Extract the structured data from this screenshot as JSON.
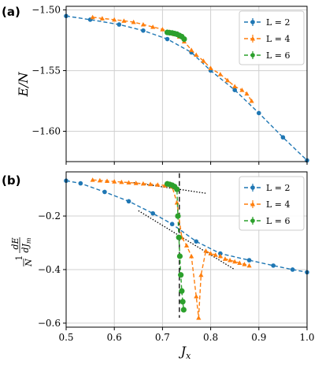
{
  "panels": [
    {
      "label": "(a)",
      "ylabel": "E/N"
    },
    {
      "label": "(b)",
      "ylabel": "(1/N) dE/dJ_m"
    }
  ],
  "colors": {
    "L2": "#1f77b4",
    "L4": "#ff7f0e",
    "L6": "#2ca02c",
    "grid": "#d0d0d0"
  },
  "chart_data": [
    {
      "type": "line",
      "panel": "(a)",
      "ylabel": "E/N",
      "xlim": [
        0.5,
        1.0
      ],
      "ylim": [
        -1.625,
        -1.497
      ],
      "x_ticks": [
        "0.5",
        "0.6",
        "0.7",
        "0.8",
        "0.9",
        "1.0"
      ],
      "y_ticks": [
        {
          "value": -1.5,
          "label": "−1.50"
        },
        {
          "value": -1.55,
          "label": "−1.55"
        },
        {
          "value": -1.6,
          "label": "−1.60"
        }
      ],
      "grid": true,
      "legend_position": "top-right",
      "series": [
        {
          "name": "L = 2",
          "marker": "circle",
          "color": "#1f77b4",
          "x": [
            0.5,
            0.55,
            0.61,
            0.66,
            0.71,
            0.76,
            0.8,
            0.85,
            0.9,
            0.95,
            1.0
          ],
          "y": [
            -1.505,
            -1.508,
            -1.512,
            -1.517,
            -1.524,
            -1.535,
            -1.55,
            -1.566,
            -1.585,
            -1.605,
            -1.624
          ]
        },
        {
          "name": "L = 4",
          "marker": "triangle",
          "color": "#ff7f0e",
          "x": [
            0.555,
            0.575,
            0.6,
            0.62,
            0.64,
            0.66,
            0.68,
            0.7,
            0.715,
            0.725,
            0.735,
            0.745,
            0.76,
            0.77,
            0.785,
            0.8,
            0.82,
            0.835,
            0.85,
            0.865,
            0.875,
            0.885
          ],
          "y": [
            -1.506,
            -1.507,
            -1.508,
            -1.509,
            -1.51,
            -1.512,
            -1.514,
            -1.516,
            -1.518,
            -1.52,
            -1.522,
            -1.526,
            -1.533,
            -1.537,
            -1.542,
            -1.548,
            -1.553,
            -1.558,
            -1.563,
            -1.566,
            -1.569,
            -1.575
          ]
        },
        {
          "name": "L = 6",
          "marker": "circle",
          "color": "#2ca02c",
          "x": [
            0.71,
            0.715,
            0.72,
            0.725,
            0.73,
            0.735,
            0.74,
            0.745
          ],
          "y": [
            -1.5185,
            -1.5188,
            -1.519,
            -1.5195,
            -1.52,
            -1.521,
            -1.522,
            -1.524
          ]
        }
      ]
    },
    {
      "type": "line",
      "panel": "(b)",
      "ylabel": "(1/N) dE/dJ_m",
      "xlabel": "J_x",
      "xlim": [
        0.5,
        1.0
      ],
      "ylim": [
        -0.615,
        -0.035
      ],
      "x_ticks": [
        "0.5",
        "0.6",
        "0.7",
        "0.8",
        "0.9",
        "1.0"
      ],
      "y_ticks": [
        {
          "value": -0.2,
          "label": "−0.2"
        },
        {
          "value": -0.4,
          "label": "−0.4"
        },
        {
          "value": -0.6,
          "label": "−0.6"
        }
      ],
      "grid": true,
      "legend_position": "top-right",
      "series": [
        {
          "name": "L = 2",
          "marker": "circle",
          "color": "#1f77b4",
          "x": [
            0.5,
            0.53,
            0.58,
            0.63,
            0.68,
            0.72,
            0.77,
            0.82,
            0.88,
            0.93,
            0.97,
            1.0
          ],
          "y": [
            -0.068,
            -0.078,
            -0.11,
            -0.145,
            -0.19,
            -0.23,
            -0.295,
            -0.34,
            -0.365,
            -0.385,
            -0.4,
            -0.41
          ]
        },
        {
          "name": "L = 4",
          "marker": "triangle",
          "color": "#ff7f0e",
          "x": [
            0.555,
            0.57,
            0.585,
            0.6,
            0.615,
            0.63,
            0.645,
            0.66,
            0.675,
            0.69,
            0.705,
            0.72,
            0.73,
            0.74,
            0.75,
            0.76,
            0.77,
            0.775,
            0.78,
            0.79,
            0.8,
            0.81,
            0.82,
            0.83,
            0.84,
            0.85,
            0.86,
            0.87,
            0.88
          ],
          "y": [
            -0.065,
            -0.067,
            -0.069,
            -0.071,
            -0.073,
            -0.075,
            -0.077,
            -0.079,
            -0.081,
            -0.083,
            -0.086,
            -0.09,
            -0.15,
            -0.28,
            -0.31,
            -0.35,
            -0.5,
            -0.58,
            -0.42,
            -0.33,
            -0.34,
            -0.345,
            -0.35,
            -0.36,
            -0.365,
            -0.37,
            -0.375,
            -0.38,
            -0.385
          ]
        },
        {
          "name": "L = 6",
          "marker": "circle",
          "color": "#2ca02c",
          "x": [
            0.71,
            0.715,
            0.72,
            0.725,
            0.73,
            0.732,
            0.734,
            0.736,
            0.738,
            0.74,
            0.742,
            0.744
          ],
          "y": [
            -0.08,
            -0.082,
            -0.085,
            -0.09,
            -0.1,
            -0.2,
            -0.28,
            -0.35,
            -0.42,
            -0.48,
            -0.52,
            -0.55
          ]
        }
      ],
      "reference_lines": [
        {
          "style": "dashed",
          "color": "#000000",
          "x": [
            0.735,
            0.735
          ],
          "y": [
            -0.04,
            -0.58
          ]
        },
        {
          "style": "dotted",
          "color": "#000000",
          "x": [
            0.64,
            0.79
          ],
          "y": [
            -0.075,
            -0.115
          ]
        },
        {
          "style": "dotted",
          "color": "#000000",
          "x": [
            0.65,
            0.85
          ],
          "y": [
            -0.18,
            -0.4
          ]
        }
      ]
    }
  ]
}
